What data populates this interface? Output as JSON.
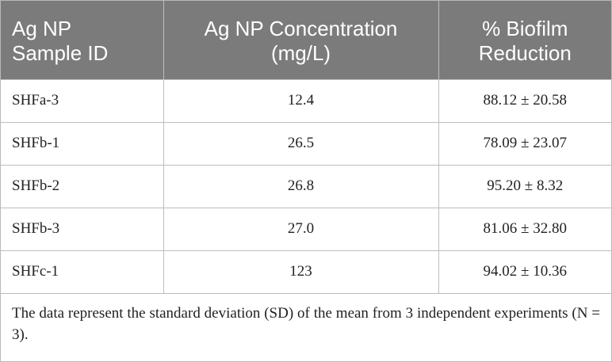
{
  "table": {
    "headers": [
      {
        "line1": "Ag NP",
        "line2": "Sample ID"
      },
      {
        "line1": "Ag NP Concentration",
        "line2": "(mg/L)"
      },
      {
        "line1": "% Biofilm",
        "line2": "Reduction"
      }
    ],
    "rows": [
      {
        "sample": "SHFa-3",
        "concentration": "12.4",
        "reduction": "88.12 ± 20.58"
      },
      {
        "sample": "SHFb-1",
        "concentration": "26.5",
        "reduction": "78.09 ± 23.07"
      },
      {
        "sample": "SHFb-2",
        "concentration": "26.8",
        "reduction": "95.20 ± 8.32"
      },
      {
        "sample": "SHFb-3",
        "concentration": "27.0",
        "reduction": "81.06 ± 32.80"
      },
      {
        "sample": "SHFc-1",
        "concentration": "123",
        "reduction": "94.02 ± 10.36"
      }
    ],
    "footnote": "The data represent the standard deviation (SD) of the mean from 3 independent experiments (N = 3)."
  },
  "colors": {
    "header_background": "#7b7b7b",
    "header_text": "#ffffff",
    "body_text": "#222222",
    "grid_line": "#bdbdbd"
  }
}
